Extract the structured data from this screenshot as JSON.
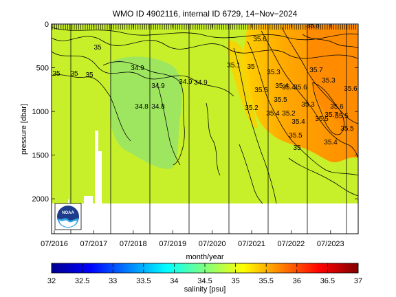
{
  "chart_data": {
    "type": "heatmap",
    "title": "WMO ID 4902116, internal ID 6729, 14−Nov−2024",
    "xlabel": "month/year",
    "ylabel": "pressure [dbar]",
    "x_ticks": [
      "07/2016",
      "07/2017",
      "07/2018",
      "07/2019",
      "07/2020",
      "07/2021",
      "07/2022",
      "07/2023"
    ],
    "y_ticks": [
      0,
      500,
      1000,
      1500,
      2000
    ],
    "ylim": [
      2400,
      0
    ],
    "yaxis_inverted": true,
    "colorbar": {
      "label": "salinity [psu]",
      "min": 32,
      "max": 37,
      "ticks": [
        32,
        32.5,
        33,
        33.5,
        34,
        34.5,
        35,
        35.5,
        36,
        36.5,
        37
      ],
      "colormap": "jet"
    },
    "profile_depth_max": 2000,
    "zones": [
      {
        "period": "2016-2017",
        "range": "34.8-35.2",
        "color": "#c8f02a"
      },
      {
        "period": "2018-2019",
        "range": "34.6-34.9",
        "color": "#9fe660"
      },
      {
        "period": "2021-2024",
        "range": "35.4-35.8",
        "color": "#ff9900"
      }
    ],
    "contour_labels": [
      "35",
      "35",
      "35",
      "35",
      "34.9",
      "34.9",
      "34.8",
      "34.8",
      "34.9",
      "34.9",
      "35.1",
      "35",
      "35.2",
      "35.3",
      "35.4",
      "35.5",
      "35.6",
      "35.4",
      "35.5",
      "35.6",
      "35.7",
      "35.3",
      "35.4",
      "35.2",
      "35.3",
      "35.4",
      "35.5",
      "35.5",
      "35.6",
      "35.7",
      "35.5",
      "35.4",
      "35.6",
      "35",
      "35.5",
      "35.6"
    ],
    "vertical_lines_years": [
      "2017",
      "2018",
      "2019",
      "2020",
      "2021",
      "2022",
      "2023",
      "2024"
    ]
  },
  "logo": {
    "text": "NOAA"
  }
}
